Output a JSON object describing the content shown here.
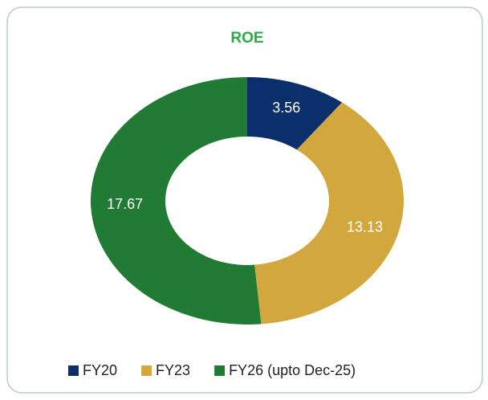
{
  "chart_data": {
    "type": "donut",
    "title": "ROE",
    "categories": [
      "FY20",
      "FY23",
      "FY26 (upto Dec-25)"
    ],
    "values": [
      3.56,
      13.13,
      17.67
    ],
    "colors": [
      "#0b2f6a",
      "#d2a73e",
      "#217b35"
    ]
  }
}
